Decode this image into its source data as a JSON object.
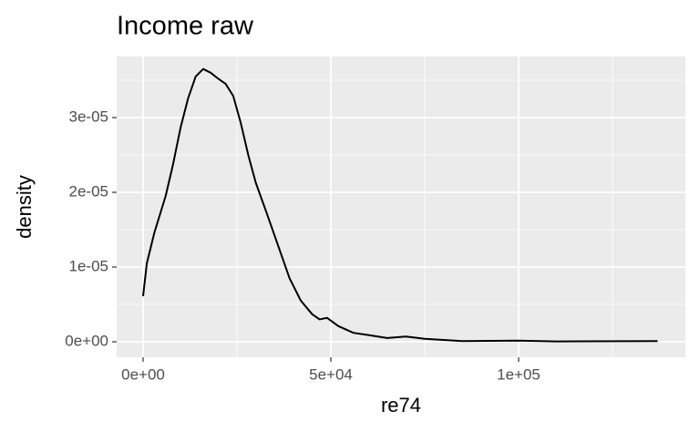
{
  "chart_data": {
    "type": "line",
    "title": "Income raw",
    "x_label": "re74",
    "y_label": "density",
    "x": [
      0,
      1000,
      3000,
      6000,
      8000,
      10000,
      12000,
      14000,
      16000,
      18000,
      20000,
      22000,
      24000,
      26000,
      28000,
      30000,
      33000,
      36000,
      39000,
      42000,
      45000,
      47000,
      49000,
      52000,
      56000,
      60000,
      65000,
      70000,
      75000,
      85000,
      100000,
      110000,
      137000
    ],
    "y": [
      6.1e-06,
      1.05e-05,
      1.46e-05,
      1.95e-05,
      2.38e-05,
      2.87e-05,
      3.26e-05,
      3.55e-05,
      3.65e-05,
      3.6e-05,
      3.52e-05,
      3.45e-05,
      3.29e-05,
      2.93e-05,
      2.5e-05,
      2.13e-05,
      1.71e-05,
      1.28e-05,
      8.5e-06,
      5.5e-06,
      3.7e-06,
      3e-06,
      3.2e-06,
      2.1e-06,
      1.2e-06,
      9e-07,
      5e-07,
      7e-07,
      4e-07,
      1e-07,
      1.5e-07,
      5e-08,
      1e-07
    ],
    "color": "#000000",
    "xlim": [
      -7039,
      144417
    ],
    "ylim": [
      -2.07e-06,
      3.817e-05
    ],
    "xticks": [
      {
        "value": 0,
        "label": "0e+00"
      },
      {
        "value": 50000,
        "label": "5e+04"
      },
      {
        "value": 100000,
        "label": "1e+05"
      }
    ],
    "yticks": [
      {
        "value": 0,
        "label": "0e+00"
      },
      {
        "value": 1e-05,
        "label": "1e-05"
      },
      {
        "value": 2e-05,
        "label": "2e-05"
      },
      {
        "value": 3e-05,
        "label": "3e-05"
      }
    ],
    "x_minor_ticks": [
      25000,
      75000,
      125000
    ],
    "y_minor_ticks": [
      5e-06,
      1.5e-05,
      2.5e-05,
      3.5e-05
    ],
    "grid": true
  }
}
